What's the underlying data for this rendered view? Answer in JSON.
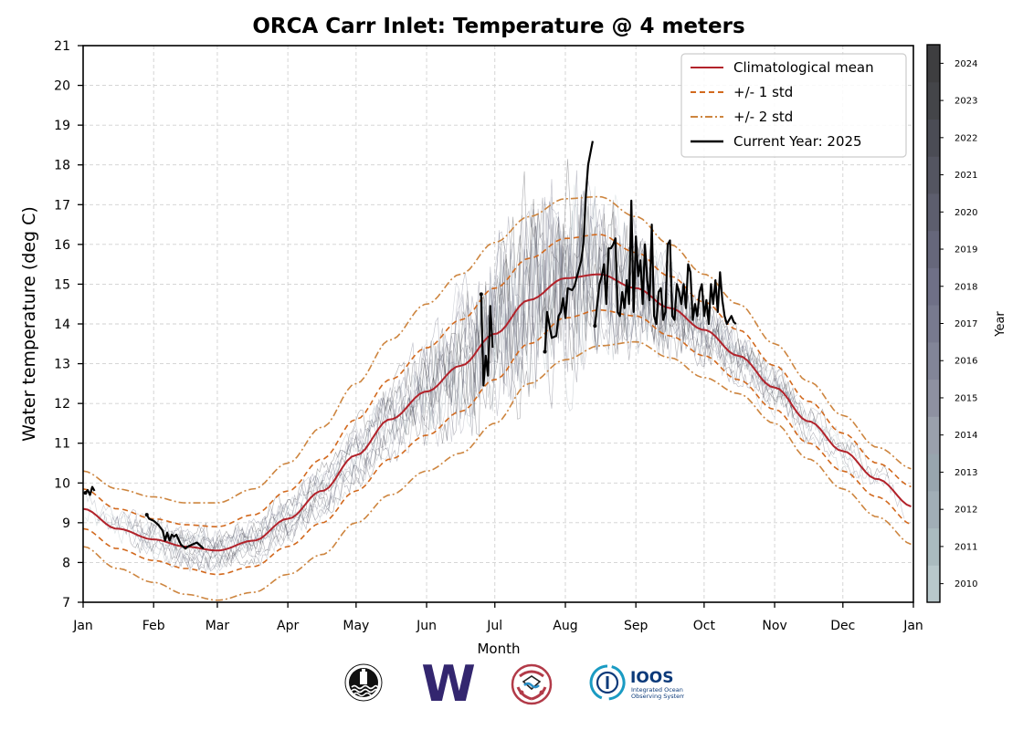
{
  "chart_data": {
    "type": "line",
    "title": "ORCA Carr Inlet: Temperature @ 4 meters",
    "xlabel": "Month",
    "ylabel": "Water temperature (deg C)",
    "xlim_days": [
      0,
      365
    ],
    "ylim": [
      7,
      21
    ],
    "grid": true,
    "legend_position": "top-right",
    "x_ticks": [
      {
        "label": "Jan",
        "day": 0
      },
      {
        "label": "Feb",
        "day": 31
      },
      {
        "label": "Mar",
        "day": 59
      },
      {
        "label": "Apr",
        "day": 90
      },
      {
        "label": "May",
        "day": 120
      },
      {
        "label": "Jun",
        "day": 151
      },
      {
        "label": "Jul",
        "day": 181
      },
      {
        "label": "Aug",
        "day": 212
      },
      {
        "label": "Sep",
        "day": 243
      },
      {
        "label": "Oct",
        "day": 273
      },
      {
        "label": "Nov",
        "day": 304
      },
      {
        "label": "Dec",
        "day": 334
      },
      {
        "label": "Jan",
        "day": 365
      }
    ],
    "y_ticks": [
      7,
      8,
      9,
      10,
      11,
      12,
      13,
      14,
      15,
      16,
      17,
      18,
      19,
      20,
      21
    ],
    "legend": [
      {
        "label": "Climatological mean",
        "color": "#b2222a",
        "style": "solid"
      },
      {
        "label": "+/- 1 std",
        "color": "#d2691e",
        "style": "dashed"
      },
      {
        "label": "+/- 2 std",
        "color": "#cd853f",
        "style": "dashdot"
      },
      {
        "label": "Current Year: 2025",
        "color": "#000000",
        "style": "solid"
      }
    ],
    "series": [
      {
        "name": "Climatological mean",
        "day": [
          0,
          15,
          31,
          45,
          59,
          75,
          90,
          105,
          120,
          135,
          151,
          166,
          181,
          196,
          212,
          227,
          243,
          258,
          273,
          288,
          304,
          319,
          334,
          349,
          365
        ],
        "values": [
          9.35,
          8.85,
          8.58,
          8.4,
          8.3,
          8.55,
          9.1,
          9.8,
          10.7,
          11.6,
          12.3,
          12.95,
          13.75,
          14.6,
          15.15,
          15.25,
          14.9,
          14.4,
          13.85,
          13.2,
          12.4,
          11.55,
          10.8,
          10.1,
          9.4
        ]
      },
      {
        "name": "+1 std",
        "day": [
          0,
          15,
          31,
          45,
          59,
          75,
          90,
          105,
          120,
          135,
          151,
          166,
          181,
          196,
          212,
          227,
          243,
          258,
          273,
          288,
          304,
          319,
          334,
          349,
          365
        ],
        "values": [
          9.85,
          9.35,
          9.1,
          8.95,
          8.9,
          9.2,
          9.8,
          10.6,
          11.6,
          12.6,
          13.4,
          14.1,
          14.9,
          15.65,
          16.15,
          16.25,
          15.8,
          15.2,
          14.55,
          13.85,
          12.95,
          12.05,
          11.25,
          10.5,
          9.9
        ]
      },
      {
        "name": "-1 std",
        "day": [
          0,
          15,
          31,
          45,
          59,
          75,
          90,
          105,
          120,
          135,
          151,
          166,
          181,
          196,
          212,
          227,
          243,
          258,
          273,
          288,
          304,
          319,
          334,
          349,
          365
        ],
        "values": [
          8.85,
          8.35,
          8.05,
          7.85,
          7.7,
          7.9,
          8.4,
          9.0,
          9.8,
          10.6,
          11.2,
          11.8,
          12.6,
          13.5,
          14.15,
          14.35,
          14.2,
          13.7,
          13.2,
          12.6,
          11.85,
          11.0,
          10.3,
          9.65,
          8.95
        ]
      },
      {
        "name": "+2 std",
        "day": [
          0,
          15,
          31,
          45,
          59,
          75,
          90,
          105,
          120,
          135,
          151,
          166,
          181,
          196,
          212,
          227,
          243,
          258,
          273,
          288,
          304,
          319,
          334,
          349,
          365
        ],
        "values": [
          10.3,
          9.85,
          9.65,
          9.5,
          9.5,
          9.85,
          10.5,
          11.4,
          12.5,
          13.6,
          14.5,
          15.25,
          16.05,
          16.7,
          17.15,
          17.2,
          16.7,
          16.0,
          15.25,
          14.5,
          13.5,
          12.55,
          11.7,
          10.9,
          10.35
        ]
      },
      {
        "name": "-2 std",
        "day": [
          0,
          15,
          31,
          45,
          59,
          75,
          90,
          105,
          120,
          135,
          151,
          166,
          181,
          196,
          212,
          227,
          243,
          258,
          273,
          288,
          304,
          319,
          334,
          349,
          365
        ],
        "values": [
          8.4,
          7.85,
          7.5,
          7.2,
          7.05,
          7.25,
          7.7,
          8.2,
          9.0,
          9.7,
          10.3,
          10.75,
          11.5,
          12.5,
          13.1,
          13.45,
          13.55,
          13.15,
          12.65,
          12.25,
          11.5,
          10.6,
          9.85,
          9.15,
          8.45
        ]
      },
      {
        "name": "Current Year: 2025",
        "segments": [
          {
            "day": [
              1,
              2,
              3,
              4,
              5
            ],
            "values": [
              9.75,
              9.82,
              9.7,
              9.9,
              9.8
            ]
          },
          {
            "day": [
              28,
              29,
              31,
              33,
              35,
              36,
              37,
              38,
              39,
              40,
              41,
              43,
              45,
              46,
              48,
              50,
              52,
              53
            ],
            "values": [
              9.2,
              9.1,
              9.05,
              8.95,
              8.8,
              8.55,
              8.75,
              8.55,
              8.7,
              8.65,
              8.7,
              8.45,
              8.35,
              8.4,
              8.45,
              8.5,
              8.4,
              8.35
            ]
          },
          {
            "day": [
              175,
              176,
              177,
              178,
              179,
              180
            ],
            "values": [
              14.75,
              12.45,
              13.2,
              12.7,
              14.45,
              13.4
            ]
          },
          {
            "day": [
              203,
              204,
              206,
              208,
              209,
              210,
              211,
              212,
              213,
              215,
              216,
              219,
              220,
              221,
              222,
              223,
              224
            ],
            "values": [
              13.3,
              14.3,
              13.65,
              13.7,
              14.2,
              14.3,
              14.65,
              14.15,
              14.9,
              14.85,
              14.95,
              15.6,
              16.05,
              17.25,
              18.0,
              18.3,
              18.6
            ]
          },
          {
            "day": [
              225,
              227,
              228,
              229,
              230,
              231,
              232,
              233,
              234,
              235,
              236,
              237,
              238,
              239,
              240,
              241,
              242,
              243,
              244,
              245,
              246,
              247,
              248,
              249,
              250,
              251,
              252,
              253,
              254,
              255,
              256,
              257,
              258,
              259,
              260,
              261,
              262,
              263,
              264,
              265,
              266,
              267,
              268,
              269,
              270,
              271,
              272,
              273,
              274,
              275,
              276,
              277,
              278,
              279,
              280,
              281,
              282,
              283,
              284,
              285,
              286,
              287
            ],
            "values": [
              13.95,
              15.0,
              15.2,
              15.5,
              14.5,
              15.9,
              15.9,
              16.0,
              16.15,
              14.3,
              14.2,
              14.8,
              14.4,
              15.1,
              14.5,
              17.1,
              14.3,
              16.2,
              15.2,
              15.6,
              14.5,
              16.0,
              15.1,
              14.6,
              16.5,
              14.2,
              14.0,
              14.8,
              14.9,
              14.1,
              14.3,
              16.0,
              16.1,
              14.2,
              14.1,
              15.0,
              14.8,
              14.5,
              15.0,
              14.4,
              15.5,
              15.3,
              14.1,
              14.5,
              14.2,
              14.8,
              15.0,
              14.2,
              14.6,
              14.0,
              15.0,
              14.5,
              15.1,
              14.3,
              15.3,
              14.6,
              14.2,
              14.0,
              14.1,
              14.2,
              14.05,
              14.0
            ]
          }
        ]
      }
    ],
    "historical_years": {
      "description": "Daily temperature traces for each year, colored by year",
      "years": [
        2010,
        2011,
        2012,
        2013,
        2014,
        2015,
        2016,
        2017,
        2018,
        2019,
        2020,
        2021,
        2022,
        2023,
        2024
      ]
    },
    "colorbar": {
      "label": "Year",
      "ticks": [
        2010,
        2011,
        2012,
        2013,
        2014,
        2015,
        2016,
        2017,
        2018,
        2019,
        2020,
        2021,
        2022,
        2023,
        2024
      ],
      "colors": [
        "#b8c8cb",
        "#aabbbf",
        "#a1aeb6",
        "#98a5ae",
        "#9aa0ac",
        "#8e91a1",
        "#828598",
        "#787a8f",
        "#6f7087",
        "#66677b",
        "#5d5e6e",
        "#545561",
        "#4b4c55",
        "#444549",
        "#3e3e40"
      ]
    }
  },
  "logos": [
    {
      "name": "buoy-logo"
    },
    {
      "name": "uw-logo",
      "text": "W",
      "color": "#33266f"
    },
    {
      "name": "nanoos-logo"
    },
    {
      "name": "ioos-logo",
      "text": "IOOS",
      "subtitle1": "Integrated Ocean",
      "subtitle2": "Observing System",
      "color": "#0b3a7a",
      "accent": "#1a9bc3"
    }
  ]
}
